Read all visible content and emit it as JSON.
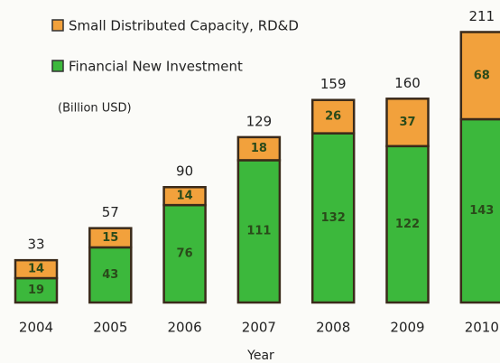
{
  "chart_data": {
    "type": "stacked_bar",
    "legend_items": [
      "Small Distributed Capacity,  RD&D",
      "Financial New Investment"
    ],
    "unit_label": "(Billion USD)",
    "x_label": "Year",
    "categories": [
      "2004",
      "2005",
      "2006",
      "2007",
      "2008",
      "2009",
      "2010"
    ],
    "series": [
      {
        "name": "Financial New Investment",
        "color": "#3cb83c",
        "values": [
          19,
          43,
          76,
          111,
          132,
          122,
          143
        ]
      },
      {
        "name": "Small Distributed Capacity,  RD&D",
        "color": "#f2a13c",
        "values": [
          14,
          15,
          14,
          18,
          26,
          37,
          68
        ]
      }
    ],
    "totals": [
      33,
      57,
      90,
      129,
      159,
      160,
      211
    ],
    "ylim": [
      0,
      236
    ]
  }
}
